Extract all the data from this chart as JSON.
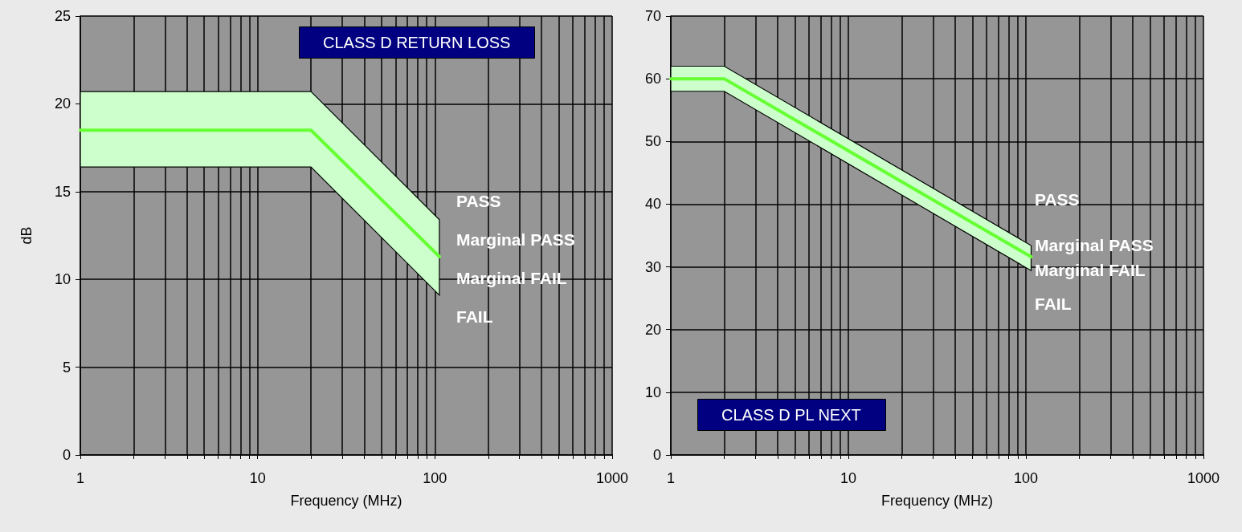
{
  "chart_data": [
    {
      "type": "line",
      "title": "CLASS D RETURN LOSS",
      "xlabel": "Frequency (MHz)",
      "ylabel": "dB",
      "log": "x",
      "series": [
        {
          "color": "#66ff33",
          "x": [
            1,
            20,
            106
          ],
          "values": [
            18.5,
            18.5,
            11.3
          ],
          "lower": [
            16.4,
            16.4,
            9.1
          ],
          "upper": [
            20.7,
            20.7,
            13.4
          ]
        }
      ],
      "xlim": [
        1,
        1000
      ],
      "xticks": [
        1,
        {
          "value": 2,
          "label": null
        },
        {
          "value": 3,
          "label": null
        },
        {
          "value": 4,
          "label": null
        },
        {
          "value": 5,
          "label": null
        },
        {
          "value": 6,
          "label": null
        },
        {
          "value": 7,
          "label": null
        },
        {
          "value": 8,
          "label": null
        },
        {
          "value": 9,
          "label": null
        },
        10,
        {
          "value": 20,
          "label": null
        },
        {
          "value": 30,
          "label": null
        },
        {
          "value": 40,
          "label": null
        },
        {
          "value": 50,
          "label": null
        },
        {
          "value": 60,
          "label": null
        },
        {
          "value": 70,
          "label": null
        },
        {
          "value": 80,
          "label": null
        },
        {
          "value": 90,
          "label": null
        },
        100,
        {
          "value": 200,
          "label": null
        },
        {
          "value": 300,
          "label": null
        },
        {
          "value": 400,
          "label": null
        },
        {
          "value": 500,
          "label": null
        },
        {
          "value": 600,
          "label": null
        },
        {
          "value": 700,
          "label": null
        },
        {
          "value": 800,
          "label": null
        },
        {
          "value": 900,
          "label": null
        },
        1000
      ],
      "ylim": [
        0,
        25
      ],
      "yticks": [
        0,
        5,
        10,
        15,
        20,
        25
      ],
      "grid": true,
      "marker": "none",
      "line_style": "solid",
      "annotations": [
        "PASS",
        "Marginal PASS",
        "Marginal FAIL",
        "FAIL"
      ]
    },
    {
      "type": "line",
      "title": "CLASS D PL NEXT",
      "xlabel": "Frequency (MHz)",
      "log": "x",
      "series": [
        {
          "color": "#66ff33",
          "x": [
            1,
            2,
            107
          ],
          "values": [
            60,
            60,
            31.6
          ],
          "lower": [
            58,
            58,
            29.4
          ],
          "upper": [
            62,
            62,
            33.4
          ]
        }
      ],
      "xlim": [
        1,
        1000
      ],
      "xticks": [
        1,
        {
          "value": 2,
          "label": null
        },
        {
          "value": 3,
          "label": null
        },
        {
          "value": 4,
          "label": null
        },
        {
          "value": 5,
          "label": null
        },
        {
          "value": 6,
          "label": null
        },
        {
          "value": 7,
          "label": null
        },
        {
          "value": 8,
          "label": null
        },
        {
          "value": 9,
          "label": null
        },
        10,
        {
          "value": 20,
          "label": null
        },
        {
          "value": 30,
          "label": null
        },
        {
          "value": 40,
          "label": null
        },
        {
          "value": 50,
          "label": null
        },
        {
          "value": 60,
          "label": null
        },
        {
          "value": 70,
          "label": null
        },
        {
          "value": 80,
          "label": null
        },
        {
          "value": 90,
          "label": null
        },
        100,
        {
          "value": 200,
          "label": null
        },
        {
          "value": 300,
          "label": null
        },
        {
          "value": 400,
          "label": null
        },
        {
          "value": 500,
          "label": null
        },
        {
          "value": 600,
          "label": null
        },
        {
          "value": 700,
          "label": null
        },
        {
          "value": 800,
          "label": null
        },
        {
          "value": 900,
          "label": null
        },
        1000
      ],
      "ylim": [
        0,
        70
      ],
      "yticks": [
        0,
        10,
        20,
        30,
        40,
        50,
        60,
        70
      ],
      "grid": true,
      "marker": "none",
      "line_style": "solid",
      "annotations": [
        "PASS",
        "Marginal PASS",
        "Marginal FAIL",
        "FAIL"
      ]
    }
  ]
}
